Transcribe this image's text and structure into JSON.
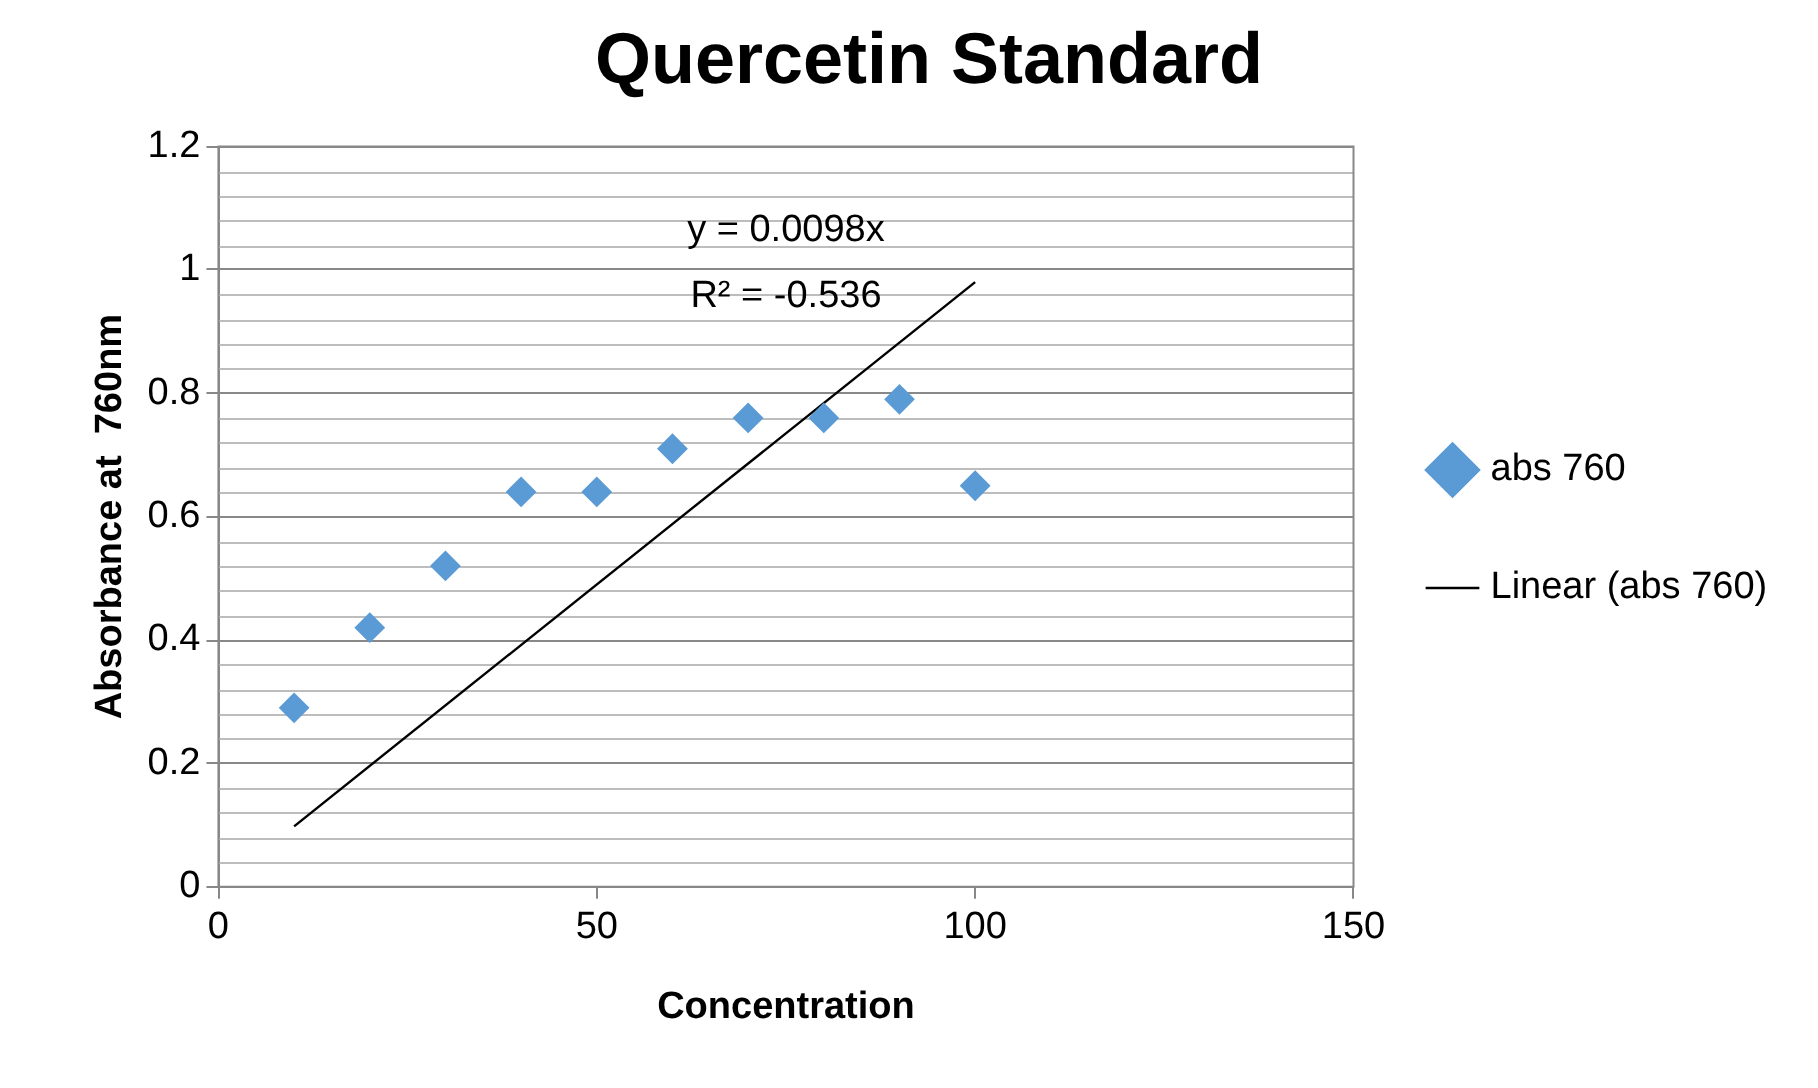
{
  "chart_data": {
    "type": "scatter",
    "title": "Quercetin Standard",
    "xlabel": "Concentration",
    "ylabel": "Absorbance at  760nm",
    "x": [
      10,
      20,
      30,
      40,
      50,
      60,
      70,
      80,
      90,
      100
    ],
    "series": [
      {
        "name": "abs 760",
        "color": "#5b9bd5",
        "marker": "diamond",
        "values": [
          0.29,
          0.42,
          0.52,
          0.64,
          0.64,
          0.71,
          0.76,
          0.76,
          0.79,
          0.65
        ]
      },
      {
        "name": "Linear (abs 760)",
        "type": "line",
        "color": "#000000",
        "marker": "none",
        "line_style": "solid",
        "x": [
          10,
          100
        ],
        "values": [
          0.098,
          0.98
        ]
      }
    ],
    "xlim": [
      0,
      150
    ],
    "xticks": [
      0,
      50,
      100,
      150
    ],
    "ylim": [
      0,
      1.2
    ],
    "yticks": [
      0,
      0.2,
      0.4,
      0.6,
      0.8,
      1,
      1.2
    ],
    "grid": "y",
    "legend": "right",
    "annotations": [
      "y = 0.0098x",
      "R² = -0.536"
    ]
  }
}
